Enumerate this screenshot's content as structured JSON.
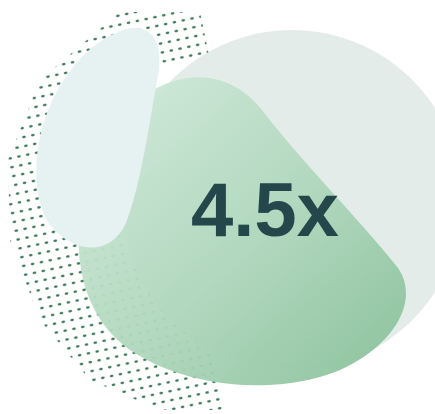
{
  "badge": {
    "label": "4.5x"
  }
}
